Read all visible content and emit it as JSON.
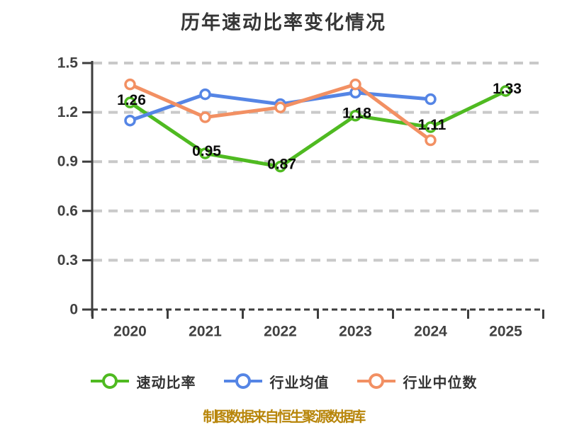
{
  "title": "历年速动比率变化情况",
  "chart_data": {
    "type": "line",
    "title": "历年速动比率变化情况",
    "categories": [
      "2020",
      "2021",
      "2022",
      "2023",
      "2024",
      "2025"
    ],
    "series": [
      {
        "name": "速动比率",
        "color": "#4fba21",
        "values": [
          1.26,
          0.95,
          0.87,
          1.18,
          1.11,
          1.33
        ],
        "data_labels": [
          "1.26",
          "0.95",
          "0.87",
          "1.18",
          "1.11",
          "1.33"
        ]
      },
      {
        "name": "行业均值",
        "color": "#5585e5",
        "values": [
          1.15,
          1.31,
          1.25,
          1.32,
          1.28,
          null
        ],
        "data_labels": []
      },
      {
        "name": "行业中位数",
        "color": "#f29063",
        "values": [
          1.37,
          1.17,
          1.23,
          1.37,
          1.03,
          null
        ],
        "data_labels": []
      }
    ],
    "ylim": [
      0,
      1.5
    ],
    "yticks": [
      "0",
      "0.3",
      "0.6",
      "0.9",
      "1.2",
      "1.5"
    ],
    "grid": "horizontal-dashed",
    "legend_position": "bottom",
    "marker_style": "hollow-circle"
  },
  "legend": {
    "items": [
      {
        "label": "速动比率",
        "color": "#4fba21"
      },
      {
        "label": "行业均值",
        "color": "#5585e5"
      },
      {
        "label": "行业中位数",
        "color": "#f29063"
      }
    ]
  },
  "footer": {
    "source_text": "制图数据来自恒生聚源数据库",
    "color": "#b8860b"
  },
  "colors": {
    "axis": "#3d3d3d",
    "grid": "#c9c9c9",
    "tick_label": "#414141",
    "title": "#363636",
    "data_label": "#0c0c0c",
    "background": "#ffffff"
  }
}
